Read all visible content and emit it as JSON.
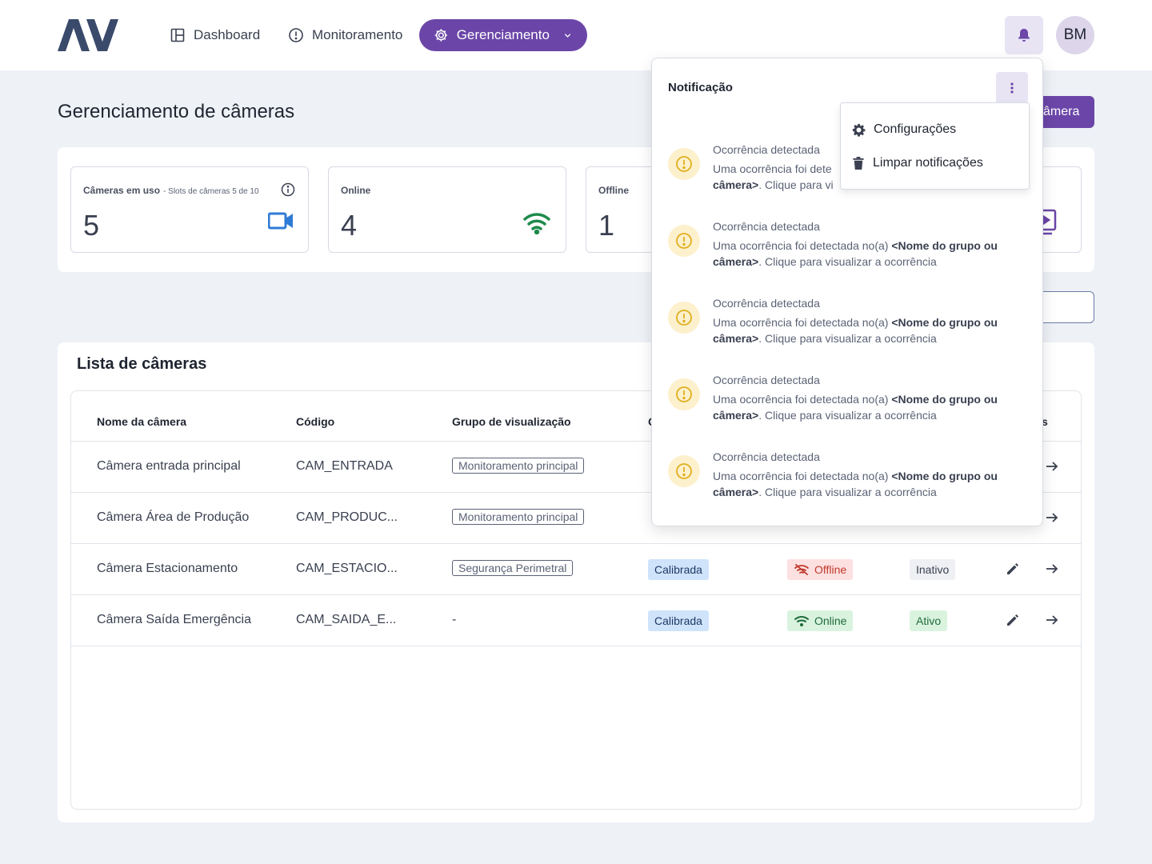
{
  "header": {
    "nav": {
      "dashboard": "Dashboard",
      "monitoring": "Monitoramento",
      "management": "Gerenciamento"
    },
    "avatar_initials": "BM"
  },
  "page": {
    "title": "Gerenciamento de câmeras",
    "add_button_partial": "âmera"
  },
  "stats": {
    "in_use": {
      "label": "Câmeras em uso",
      "sub": "- Slots de câmeras 5 de 10",
      "value": "5"
    },
    "online": {
      "label": "Online",
      "value": "4"
    },
    "offline": {
      "label": "Offline",
      "value": "1"
    }
  },
  "list": {
    "title": "Lista de câmeras",
    "columns": {
      "name": "Nome da câmera",
      "code": "Código",
      "group": "Grupo de visualização",
      "partial_a": "C",
      "partial_b": "s"
    },
    "rows": [
      {
        "name": "Câmera entrada principal",
        "code": "CAM_ENTRADA",
        "group": "Monitoramento principal"
      },
      {
        "name": "Câmera Área de Produção",
        "code": "CAM_PRODUC...",
        "group": "Monitoramento principal"
      },
      {
        "name": "Câmera Estacionamento",
        "code": "CAM_ESTACIO...",
        "group": "Segurança Perimetral",
        "calibration": "Calibrada",
        "connection": "Offline",
        "status": "Inativo"
      },
      {
        "name": "Câmera Saída Emergência",
        "code": "CAM_SAIDA_E...",
        "group": "-",
        "calibration": "Calibrada",
        "connection": "Online",
        "status": "Ativo"
      }
    ]
  },
  "notifications": {
    "title": "Notificação",
    "items": [
      {
        "title": "Ocorrência detectada",
        "body_start": "Uma ocorrência foi dete",
        "body_bold": "câmera>",
        "body_end": ". Clique para vi"
      },
      {
        "title": "Ocorrência detectada",
        "body_start": "Uma ocorrência foi detectada no(a) ",
        "body_bold1": "<Nome do grupo ou",
        "body_bold2": "câmera>",
        "body_end": ". Clique para visualizar a ocorrência"
      },
      {
        "title": "Ocorrência detectada",
        "body_start": "Uma ocorrência foi detectada no(a) ",
        "body_bold1": "<Nome do grupo ou",
        "body_bold2": "câmera>",
        "body_end": ". Clique para visualizar a ocorrência"
      },
      {
        "title": "Ocorrência detectada",
        "body_start": "Uma ocorrência foi detectada no(a) ",
        "body_bold1": "<Nome do grupo ou",
        "body_bold2": "câmera>",
        "body_end": ". Clique para visualizar a ocorrência"
      },
      {
        "title": "Ocorrência detectada",
        "body_start": "Uma ocorrência foi detectada no(a) ",
        "body_bold1": "<Nome do grupo ou",
        "body_bold2": "câmera>",
        "body_end": ". Clique para visualizar a ocorrência"
      }
    ],
    "menu": {
      "settings": "Configurações",
      "clear": "Limpar notificações"
    }
  },
  "colors": {
    "brand": "#6b46a8",
    "logo": "#3a4a6b",
    "wifi_online": "#1f8a4c",
    "camera_icon": "#2e7bd6",
    "warning": "#e0b020"
  },
  "icons": {
    "dashboard": "layout-icon",
    "monitoring": "alert-circle-icon",
    "management": "gear-icon",
    "notifications": "bell-icon",
    "camera": "video-camera-icon",
    "online": "wifi-icon",
    "offline": "wifi-off-icon"
  }
}
